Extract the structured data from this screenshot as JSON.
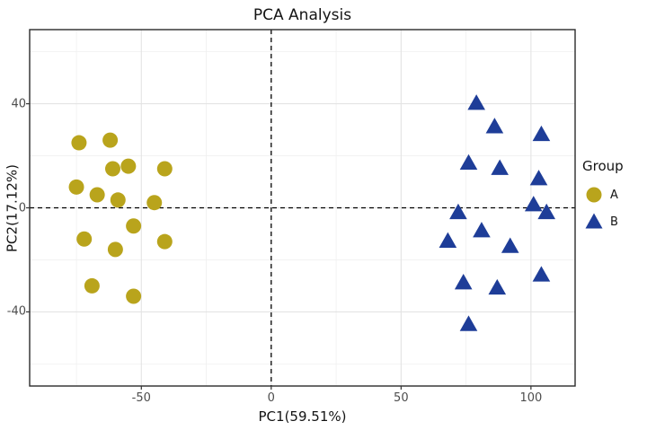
{
  "chart_data": {
    "type": "scatter",
    "title": "PCA Analysis",
    "xlabel": "PC1(59.51%)",
    "ylabel": "PC2(17.12%)",
    "xlim": [
      -93,
      117
    ],
    "ylim": [
      -68.5,
      68.5
    ],
    "x_ticks": [
      -50,
      0,
      50,
      100
    ],
    "y_ticks": [
      -40,
      0,
      40
    ],
    "grid": true,
    "reference_lines": {
      "x": 0,
      "y": 0,
      "style": "dashed",
      "color": "#000000"
    },
    "legend_title": "Group",
    "legend_position": "right",
    "panel_border_color": "#2b2b2b",
    "major_grid_color": "#e3e3e3",
    "minor_grid_color": "#f0f0f0",
    "series": [
      {
        "name": "A",
        "shape": "circle",
        "color": "#b9a41c",
        "points": [
          [
            -74,
            25
          ],
          [
            -62,
            26
          ],
          [
            -75,
            8
          ],
          [
            -67,
            5
          ],
          [
            -61,
            15
          ],
          [
            -55,
            16
          ],
          [
            -41,
            15
          ],
          [
            -59,
            3
          ],
          [
            -45,
            2
          ],
          [
            -72,
            -12
          ],
          [
            -60,
            -16
          ],
          [
            -53,
            -7
          ],
          [
            -41,
            -13
          ],
          [
            -69,
            -30
          ],
          [
            -53,
            -34
          ]
        ]
      },
      {
        "name": "B",
        "shape": "triangle",
        "color": "#1e3d98",
        "points": [
          [
            79,
            40
          ],
          [
            86,
            31
          ],
          [
            104,
            28
          ],
          [
            76,
            17
          ],
          [
            88,
            15
          ],
          [
            103,
            11
          ],
          [
            72,
            -2
          ],
          [
            101,
            1
          ],
          [
            106,
            -2
          ],
          [
            68,
            -13
          ],
          [
            81,
            -9
          ],
          [
            92,
            -15
          ],
          [
            74,
            -29
          ],
          [
            87,
            -31
          ],
          [
            104,
            -26
          ],
          [
            76,
            -45
          ]
        ]
      }
    ]
  }
}
